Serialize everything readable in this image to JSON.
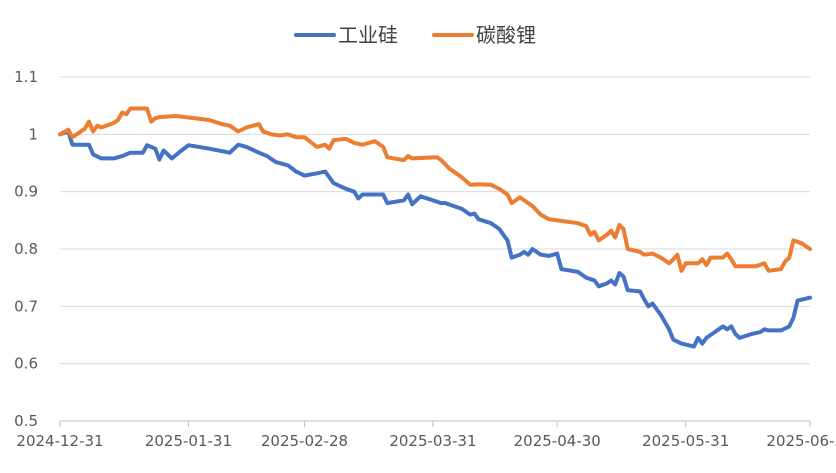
{
  "chart_data": {
    "type": "line",
    "title": "",
    "xlabel": "",
    "ylabel": "",
    "ylim": [
      0.5,
      1.1
    ],
    "yticks": [
      "0.5",
      "0.6",
      "0.7",
      "0.8",
      "0.9",
      "1",
      "1.1"
    ],
    "grid": true,
    "legend_position": "top",
    "x_range": [
      "2024-12-31",
      "2025-06-30"
    ],
    "xticks": [
      "2024-12-31",
      "2025-01-31",
      "2025-02-28",
      "2025-03-31",
      "2025-04-30",
      "2025-05-31",
      "2025-06-30"
    ],
    "series": [
      {
        "name": "工业硅",
        "color": "#4472C4",
        "points": [
          [
            "2024-12-31",
            1.0
          ],
          [
            "2025-01-02",
            1.005
          ],
          [
            "2025-01-03",
            0.982
          ],
          [
            "2025-01-07",
            0.982
          ],
          [
            "2025-01-08",
            0.965
          ],
          [
            "2025-01-10",
            0.958
          ],
          [
            "2025-01-13",
            0.958
          ],
          [
            "2025-01-15",
            0.962
          ],
          [
            "2025-01-17",
            0.968
          ],
          [
            "2025-01-20",
            0.968
          ],
          [
            "2025-01-21",
            0.981
          ],
          [
            "2025-01-23",
            0.975
          ],
          [
            "2025-01-24",
            0.956
          ],
          [
            "2025-01-25",
            0.972
          ],
          [
            "2025-01-27",
            0.958
          ],
          [
            "2025-01-29",
            0.97
          ],
          [
            "2025-01-31",
            0.981
          ],
          [
            "2025-02-05",
            0.975
          ],
          [
            "2025-02-10",
            0.968
          ],
          [
            "2025-02-12",
            0.982
          ],
          [
            "2025-02-14",
            0.978
          ],
          [
            "2025-02-17",
            0.968
          ],
          [
            "2025-02-19",
            0.962
          ],
          [
            "2025-02-21",
            0.952
          ],
          [
            "2025-02-24",
            0.946
          ],
          [
            "2025-02-26",
            0.935
          ],
          [
            "2025-02-28",
            0.928
          ],
          [
            "2025-03-03",
            0.932
          ],
          [
            "2025-03-05",
            0.935
          ],
          [
            "2025-03-07",
            0.915
          ],
          [
            "2025-03-10",
            0.905
          ],
          [
            "2025-03-12",
            0.9
          ],
          [
            "2025-03-13",
            0.888
          ],
          [
            "2025-03-14",
            0.895
          ],
          [
            "2025-03-19",
            0.895
          ],
          [
            "2025-03-20",
            0.88
          ],
          [
            "2025-03-24",
            0.885
          ],
          [
            "2025-03-25",
            0.895
          ],
          [
            "2025-03-26",
            0.878
          ],
          [
            "2025-03-28",
            0.892
          ],
          [
            "2025-03-31",
            0.885
          ],
          [
            "2025-04-02",
            0.88
          ],
          [
            "2025-04-03",
            0.88
          ],
          [
            "2025-04-07",
            0.87
          ],
          [
            "2025-04-09",
            0.86
          ],
          [
            "2025-04-10",
            0.862
          ],
          [
            "2025-04-11",
            0.852
          ],
          [
            "2025-04-14",
            0.845
          ],
          [
            "2025-04-16",
            0.835
          ],
          [
            "2025-04-18",
            0.815
          ],
          [
            "2025-04-19",
            0.785
          ],
          [
            "2025-04-21",
            0.79
          ],
          [
            "2025-04-22",
            0.795
          ],
          [
            "2025-04-23",
            0.79
          ],
          [
            "2025-04-24",
            0.8
          ],
          [
            "2025-04-26",
            0.79
          ],
          [
            "2025-04-28",
            0.788
          ],
          [
            "2025-04-30",
            0.792
          ],
          [
            "2025-05-01",
            0.765
          ],
          [
            "2025-05-05",
            0.76
          ],
          [
            "2025-05-07",
            0.75
          ],
          [
            "2025-05-09",
            0.745
          ],
          [
            "2025-05-10",
            0.735
          ],
          [
            "2025-05-12",
            0.74
          ],
          [
            "2025-05-13",
            0.745
          ],
          [
            "2025-05-14",
            0.738
          ],
          [
            "2025-05-15",
            0.758
          ],
          [
            "2025-05-16",
            0.752
          ],
          [
            "2025-05-17",
            0.728
          ],
          [
            "2025-05-20",
            0.726
          ],
          [
            "2025-05-21",
            0.712
          ],
          [
            "2025-05-22",
            0.7
          ],
          [
            "2025-05-23",
            0.705
          ],
          [
            "2025-05-25",
            0.685
          ],
          [
            "2025-05-27",
            0.66
          ],
          [
            "2025-05-28",
            0.642
          ],
          [
            "2025-05-30",
            0.635
          ],
          [
            "2025-06-02",
            0.63
          ],
          [
            "2025-06-03",
            0.645
          ],
          [
            "2025-06-04",
            0.635
          ],
          [
            "2025-06-05",
            0.645
          ],
          [
            "2025-06-07",
            0.655
          ],
          [
            "2025-06-09",
            0.665
          ],
          [
            "2025-06-10",
            0.66
          ],
          [
            "2025-06-11",
            0.665
          ],
          [
            "2025-06-12",
            0.652
          ],
          [
            "2025-06-13",
            0.645
          ],
          [
            "2025-06-16",
            0.652
          ],
          [
            "2025-06-18",
            0.655
          ],
          [
            "2025-06-19",
            0.66
          ],
          [
            "2025-06-20",
            0.658
          ],
          [
            "2025-06-23",
            0.658
          ],
          [
            "2025-06-25",
            0.665
          ],
          [
            "2025-06-26",
            0.68
          ],
          [
            "2025-06-27",
            0.71
          ],
          [
            "2025-06-30",
            0.715
          ]
        ]
      },
      {
        "name": "碳酸锂",
        "color": "#ED7D31",
        "points": [
          [
            "2024-12-31",
            1.0
          ],
          [
            "2025-01-02",
            1.008
          ],
          [
            "2025-01-03",
            0.995
          ],
          [
            "2025-01-05",
            1.005
          ],
          [
            "2025-01-06",
            1.01
          ],
          [
            "2025-01-07",
            1.022
          ],
          [
            "2025-01-08",
            1.005
          ],
          [
            "2025-01-09",
            1.015
          ],
          [
            "2025-01-10",
            1.012
          ],
          [
            "2025-01-13",
            1.02
          ],
          [
            "2025-01-14",
            1.025
          ],
          [
            "2025-01-15",
            1.038
          ],
          [
            "2025-01-16",
            1.035
          ],
          [
            "2025-01-17",
            1.045
          ],
          [
            "2025-01-20",
            1.045
          ],
          [
            "2025-01-21",
            1.045
          ],
          [
            "2025-01-22",
            1.022
          ],
          [
            "2025-01-23",
            1.028
          ],
          [
            "2025-01-24",
            1.03
          ],
          [
            "2025-01-28",
            1.032
          ],
          [
            "2025-02-05",
            1.025
          ],
          [
            "2025-02-08",
            1.018
          ],
          [
            "2025-02-10",
            1.015
          ],
          [
            "2025-02-12",
            1.005
          ],
          [
            "2025-02-14",
            1.012
          ],
          [
            "2025-02-17",
            1.018
          ],
          [
            "2025-02-18",
            1.005
          ],
          [
            "2025-02-20",
            1.0
          ],
          [
            "2025-02-22",
            0.998
          ],
          [
            "2025-02-24",
            1.0
          ],
          [
            "2025-02-26",
            0.995
          ],
          [
            "2025-02-28",
            0.995
          ],
          [
            "2025-03-03",
            0.978
          ],
          [
            "2025-03-05",
            0.982
          ],
          [
            "2025-03-06",
            0.975
          ],
          [
            "2025-03-07",
            0.99
          ],
          [
            "2025-03-10",
            0.992
          ],
          [
            "2025-03-12",
            0.985
          ],
          [
            "2025-03-14",
            0.982
          ],
          [
            "2025-03-17",
            0.988
          ],
          [
            "2025-03-19",
            0.978
          ],
          [
            "2025-03-20",
            0.96
          ],
          [
            "2025-03-24",
            0.955
          ],
          [
            "2025-03-25",
            0.962
          ],
          [
            "2025-03-26",
            0.958
          ],
          [
            "2025-04-01",
            0.96
          ],
          [
            "2025-04-02",
            0.955
          ],
          [
            "2025-04-04",
            0.94
          ],
          [
            "2025-04-07",
            0.925
          ],
          [
            "2025-04-09",
            0.912
          ],
          [
            "2025-04-11",
            0.913
          ],
          [
            "2025-04-14",
            0.912
          ],
          [
            "2025-04-16",
            0.905
          ],
          [
            "2025-04-18",
            0.895
          ],
          [
            "2025-04-19",
            0.88
          ],
          [
            "2025-04-21",
            0.89
          ],
          [
            "2025-04-24",
            0.875
          ],
          [
            "2025-04-26",
            0.86
          ],
          [
            "2025-04-28",
            0.852
          ],
          [
            "2025-04-30",
            0.85
          ],
          [
            "2025-05-02",
            0.848
          ],
          [
            "2025-05-05",
            0.845
          ],
          [
            "2025-05-07",
            0.84
          ],
          [
            "2025-05-08",
            0.825
          ],
          [
            "2025-05-09",
            0.83
          ],
          [
            "2025-05-10",
            0.815
          ],
          [
            "2025-05-12",
            0.825
          ],
          [
            "2025-05-13",
            0.832
          ],
          [
            "2025-05-14",
            0.82
          ],
          [
            "2025-05-15",
            0.842
          ],
          [
            "2025-05-16",
            0.835
          ],
          [
            "2025-05-17",
            0.8
          ],
          [
            "2025-05-20",
            0.795
          ],
          [
            "2025-05-21",
            0.79
          ],
          [
            "2025-05-23",
            0.792
          ],
          [
            "2025-05-25",
            0.785
          ],
          [
            "2025-05-27",
            0.775
          ],
          [
            "2025-05-28",
            0.782
          ],
          [
            "2025-05-29",
            0.79
          ],
          [
            "2025-05-30",
            0.762
          ],
          [
            "2025-05-31",
            0.775
          ],
          [
            "2025-06-03",
            0.775
          ],
          [
            "2025-06-04",
            0.782
          ],
          [
            "2025-06-05",
            0.772
          ],
          [
            "2025-06-06",
            0.785
          ],
          [
            "2025-06-09",
            0.785
          ],
          [
            "2025-06-10",
            0.792
          ],
          [
            "2025-06-11",
            0.782
          ],
          [
            "2025-06-12",
            0.77
          ],
          [
            "2025-06-17",
            0.77
          ],
          [
            "2025-06-19",
            0.775
          ],
          [
            "2025-06-20",
            0.762
          ],
          [
            "2025-06-23",
            0.765
          ],
          [
            "2025-06-24",
            0.778
          ],
          [
            "2025-06-25",
            0.785
          ],
          [
            "2025-06-26",
            0.815
          ],
          [
            "2025-06-28",
            0.81
          ],
          [
            "2025-06-30",
            0.8
          ]
        ]
      }
    ]
  }
}
